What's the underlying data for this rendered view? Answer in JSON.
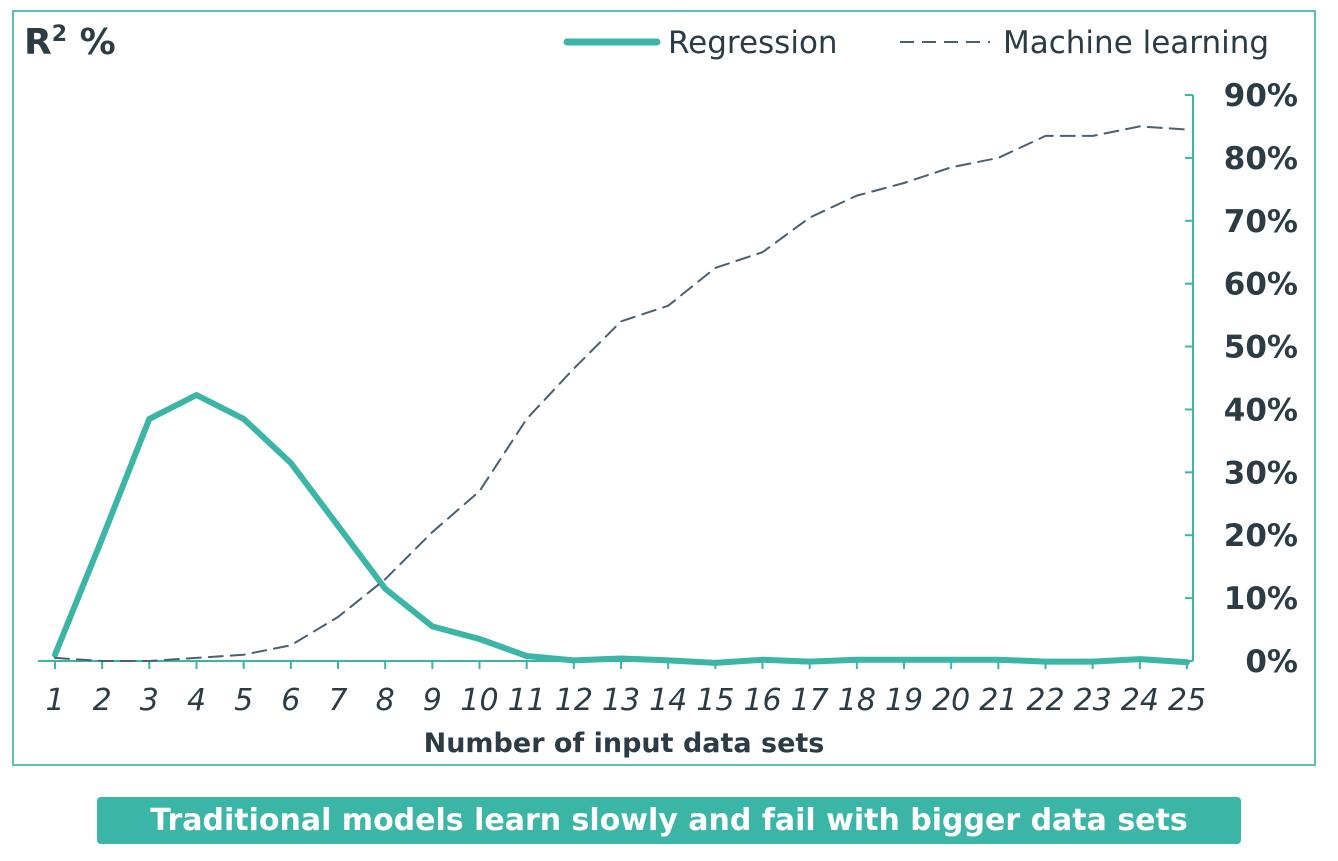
{
  "chart_data": {
    "type": "line",
    "ylabel_main": "R",
    "ylabel_sup": "2",
    "ylabel_unit": "%",
    "xlabel": "Number of input data sets",
    "categories": [
      "1",
      "2",
      "3",
      "4",
      "5",
      "6",
      "7",
      "8",
      "9",
      "10",
      "11",
      "12",
      "13",
      "14",
      "15",
      "16",
      "17",
      "18",
      "19",
      "20",
      "21",
      "22",
      "23",
      "24",
      "25"
    ],
    "y_ticks": [
      "0%",
      "10%",
      "20%",
      "30%",
      "40%",
      "50%",
      "60%",
      "70%",
      "80%",
      "90%"
    ],
    "ylim": [
      0,
      90
    ],
    "series": [
      {
        "name": "Regression",
        "color": "#3bb5a5",
        "style": "solid",
        "values": [
          1,
          19.5,
          38.5,
          42.3,
          38.5,
          31.5,
          21.5,
          11.5,
          5.5,
          3.5,
          0.8,
          0.1,
          0.4,
          0.1,
          -0.3,
          0.2,
          -0.1,
          0.2,
          0.2,
          0.2,
          0.2,
          -0.1,
          -0.1,
          0.3,
          -0.2
        ]
      },
      {
        "name": "Machine learning",
        "color": "#4a5f70",
        "style": "dashed",
        "values": [
          0.5,
          0,
          0,
          0.5,
          1,
          2.5,
          7,
          13,
          20.5,
          27,
          38.5,
          46.5,
          54,
          56.5,
          62.5,
          65,
          70.5,
          74,
          76,
          78.5,
          80,
          83.5,
          83.5,
          85,
          84.5
        ]
      }
    ],
    "legend_position": "top-right",
    "grid": false
  },
  "caption": "Traditional models learn slowly and fail with bigger data sets"
}
